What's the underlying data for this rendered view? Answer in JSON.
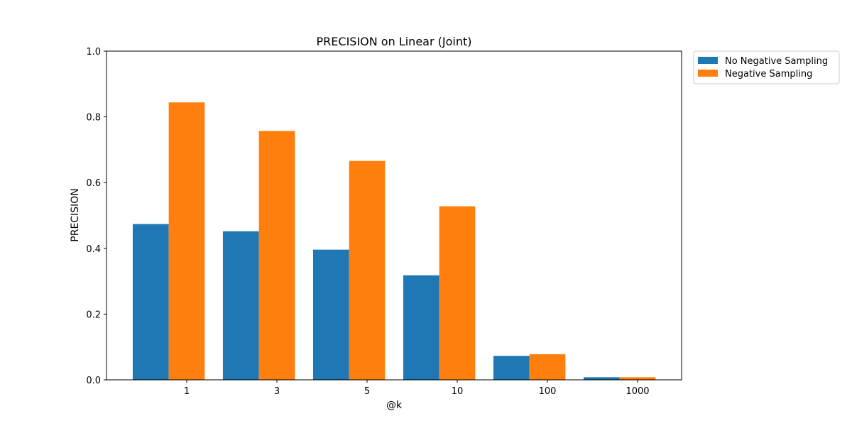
{
  "chart_data": {
    "type": "bar",
    "title": "PRECISION on Linear (Joint)",
    "xlabel": "@k",
    "ylabel": "PRECISION",
    "categories": [
      "1",
      "3",
      "5",
      "10",
      "100",
      "1000"
    ],
    "ylim": [
      0,
      1.0
    ],
    "yticks": [
      "0.0",
      "0.2",
      "0.4",
      "0.6",
      "0.8",
      "1.0"
    ],
    "grid": false,
    "legend_position": "outside-top-right",
    "series": [
      {
        "name": "No Negative Sampling",
        "color": "#1f77b4",
        "values": [
          0.474,
          0.452,
          0.396,
          0.318,
          0.073,
          0.008
        ]
      },
      {
        "name": "Negative Sampling",
        "color": "#ff7f0e",
        "values": [
          0.844,
          0.757,
          0.666,
          0.528,
          0.078,
          0.008
        ]
      }
    ]
  }
}
